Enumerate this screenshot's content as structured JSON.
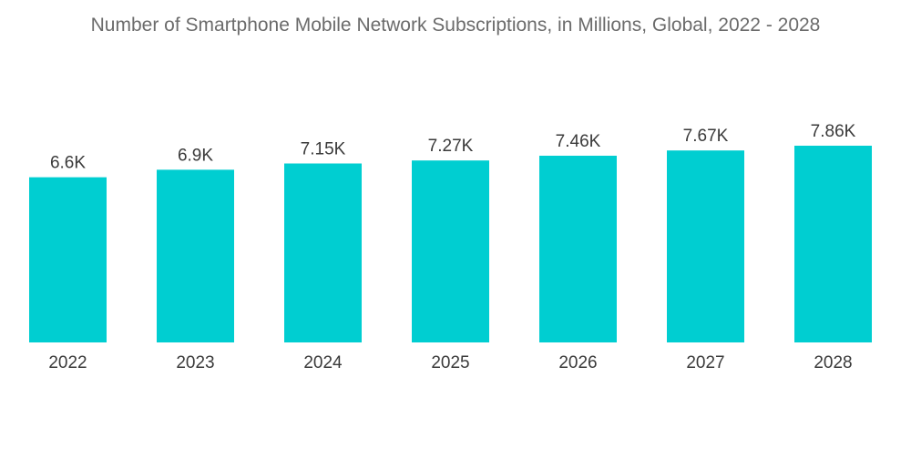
{
  "chart_data": {
    "type": "bar",
    "title": "Number of Smartphone Mobile Network Subscriptions, in Millions, Global, 2022 - 2028",
    "categories": [
      "2022",
      "2023",
      "2024",
      "2025",
      "2026",
      "2027",
      "2028"
    ],
    "values": [
      6.6,
      6.9,
      7.15,
      7.27,
      7.46,
      7.67,
      7.86
    ],
    "value_labels": [
      "6.6K",
      "6.9K",
      "7.15K",
      "7.27K",
      "7.46K",
      "7.67K",
      "7.86K"
    ],
    "xlabel": "",
    "ylabel": "",
    "grid": false,
    "legend": "none",
    "bar_color": "#00CED1"
  }
}
